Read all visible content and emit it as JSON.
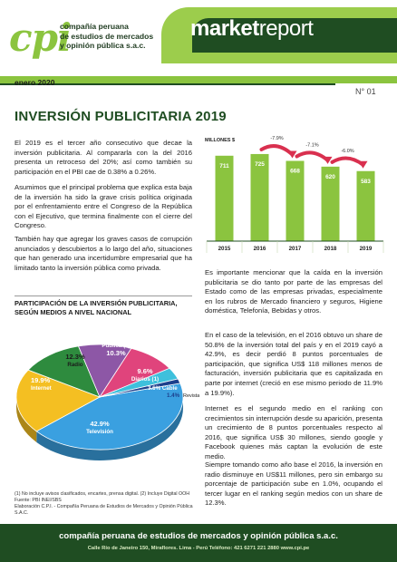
{
  "header": {
    "logo_mark": "cpi",
    "company_lines": [
      "compañía peruana",
      "de estudios de mercados",
      "y opinión pública s.a.c."
    ],
    "brand_bold": "market",
    "brand_light": "report",
    "date": "enero 2020",
    "issue": "N° 01",
    "colors": {
      "green_light": "#8bc43f",
      "green_dark": "#1f4d22",
      "accent_red": "#d9304f"
    }
  },
  "article": {
    "title": "INVERSIÓN PUBLICITARIA 2019",
    "paragraphs": [
      "El 2019 es el tercer año consecutivo que decae la inversión publicitaria. Al compararla con la del 2016 presenta un retroceso del 20%; así como también su participación en el PBI cae de 0.38% a 0.26%.",
      "Asumimos que el principal problema que explica esta baja de la inversión ha sido la grave crisis política originada por el enfrentamiento entre el Congreso de la República con el Ejecutivo, que termina finalmente con el cierre del Congreso.",
      "También hay que agregar los graves casos de corrupción anunciados y descubiertos a lo largo del año, situaciones que han generado una incertidumbre empresarial que ha limitado tanto la inversión pública como privada.",
      "Es importante mencionar que la caída en la inversión publicitaria se dio tanto por parte de las empresas del Estado como de las empresas privadas, especialmente en los rubros de Mercado financiero y seguros, Higiene doméstica, Telefonía, Bebidas y otros.",
      "En el caso de la televisión, en el 2016 obtuvo un share de 50.8% de la inversión total del país y en el 2019 cayó a 42.9%, es decir perdió 8 puntos porcentuales de participación, que significa US$ 118 millones menos de facturación, inversión publicitaria que es capitalizada en parte por internet (creció en ese mismo periodo de 11.9% a 19.9%).",
      "Internet es el segundo medio en el ranking con crecimientos sin interrupción desde su aparición, presenta un crecimiento de 8 puntos porcentuales respecto al 2016, que significa US$ 30 millones, siendo google y Facebook quienes más captan la evolución de este medio.",
      "Siempre tomando como año base el 2016, la inversión en radio disminuye en US$11 millones, pero sin embargo su porcentaje de participación sube en 1.0%, ocupando el tercer lugar en el ranking según medios con un share de 12.3%."
    ]
  },
  "chart_data": [
    {
      "type": "bar",
      "ylabel": "MILLONES $",
      "categories": [
        "2015",
        "2016",
        "2017",
        "2018",
        "2019"
      ],
      "values": [
        711,
        725,
        668,
        620,
        583
      ],
      "changes": [
        {
          "from": "2016",
          "to": "2017",
          "label": "-7.9%"
        },
        {
          "from": "2017",
          "to": "2018",
          "label": "-7.1%"
        },
        {
          "from": "2018",
          "to": "2019",
          "label": "-6.0%"
        }
      ],
      "bar_color": "#8bc43f",
      "ylim": [
        0,
        800
      ],
      "grid": false
    },
    {
      "type": "pie",
      "title": "PARTICIPACIÓN DE LA INVERSIÓN PUBLICITARIA, SEGÚN MEDIOS A NIVEL NACIONAL",
      "slices": [
        {
          "name": "Televisión",
          "value": 42.9,
          "color": "#3aa0e0"
        },
        {
          "name": "Internet",
          "value": 19.9,
          "color": "#f4bf22"
        },
        {
          "name": "Radio",
          "value": 12.3,
          "color": "#2e8b3e"
        },
        {
          "name": "Vía Pública (2)",
          "value": 10.3,
          "color": "#8d57a6"
        },
        {
          "name": "Diarios (1)",
          "value": 9.6,
          "color": "#e0447c"
        },
        {
          "name": "Cable",
          "value": 3.6,
          "color": "#3ec0dc"
        },
        {
          "name": "Revistas",
          "value": 1.4,
          "color": "#1c3f8c"
        }
      ],
      "value_labels": [
        "42.9%",
        "19.9%",
        "12.3%",
        "10.3%",
        "9.6%",
        "3.6%",
        "1.4%"
      ]
    }
  ],
  "footnotes": [
    "(1) No incluye avisos clasificados, encartes, prensa digital.  (2) Incluye Digital OOH",
    "Fuente: PBI INEI/SBS",
    "Elaboración C.P.I. - Compañía Peruana de Estudios de Mercados y Opinión Pública S.A.C."
  ],
  "footer": {
    "company": "compañía peruana de estudios de mercados y opinión pública s.a.c.",
    "address": "Calle Río de Janeiro 150, Miraflores. Lima - Perú  Teléfono: 421 6271  221 2880  www.cpi.pe"
  }
}
